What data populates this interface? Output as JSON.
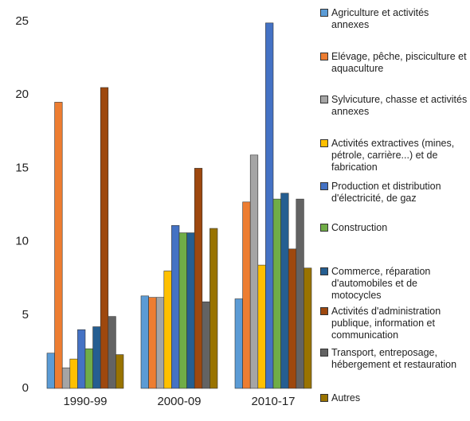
{
  "chart_data": {
    "type": "bar",
    "categories": [
      "1990-99",
      "2000-09",
      "2010-17"
    ],
    "ylim": [
      0,
      25
    ],
    "yticks": [
      0,
      5,
      10,
      15,
      20,
      25
    ],
    "grid": false,
    "series": [
      {
        "name": "Agriculture et activités annexes",
        "color": "#5b9bd5",
        "values": [
          2.4,
          6.3,
          6.1
        ]
      },
      {
        "name": "Elévage, pêche, pisciculture et aquaculture",
        "color": "#ed7d31",
        "values": [
          19.5,
          6.2,
          12.7
        ]
      },
      {
        "name": "Sylvicuture, chasse et activités annexes",
        "color": "#a5a5a5",
        "values": [
          1.4,
          6.2,
          15.9
        ]
      },
      {
        "name": "Activités extractives (mines, pétrole, carrière...) et de fabrication",
        "color": "#ffc000",
        "values": [
          2.0,
          8.0,
          8.4
        ]
      },
      {
        "name": "Production et distribution d'électricité, de gaz",
        "color": "#4472c4",
        "values": [
          4.0,
          11.1,
          24.9
        ]
      },
      {
        "name": "Construction",
        "color": "#70ad47",
        "values": [
          2.7,
          10.6,
          12.9
        ]
      },
      {
        "name": "Commerce, réparation d'automobiles et de motocycles",
        "color": "#255e91",
        "values": [
          4.2,
          10.6,
          13.3
        ]
      },
      {
        "name": "Activités d'administration publique, information et communication",
        "color": "#9e480e",
        "values": [
          20.5,
          15.0,
          9.5
        ]
      },
      {
        "name": "Transport, entreposage, hébergement et restauration",
        "color": "#636363",
        "values": [
          4.9,
          5.9,
          12.9
        ]
      },
      {
        "name": "Autres",
        "color": "#997300",
        "values": [
          2.3,
          10.9,
          8.2
        ]
      }
    ]
  }
}
